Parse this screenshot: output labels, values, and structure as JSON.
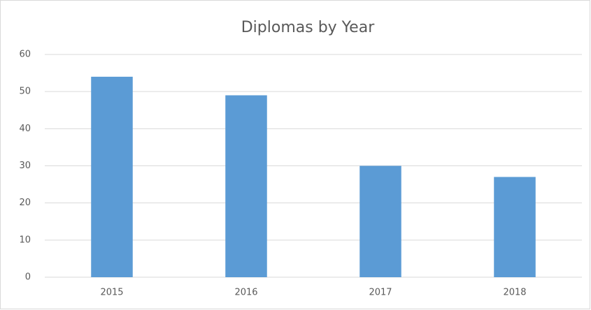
{
  "chart_data": {
    "type": "bar",
    "title": "Diplomas by Year",
    "categories": [
      "2015",
      "2016",
      "2017",
      "2018"
    ],
    "values": [
      54,
      49,
      30,
      27
    ],
    "color": "#5b9bd5",
    "ylim": [
      0,
      60
    ],
    "yticks": [
      0,
      10,
      20,
      30,
      40,
      50,
      60
    ],
    "grid": true
  }
}
